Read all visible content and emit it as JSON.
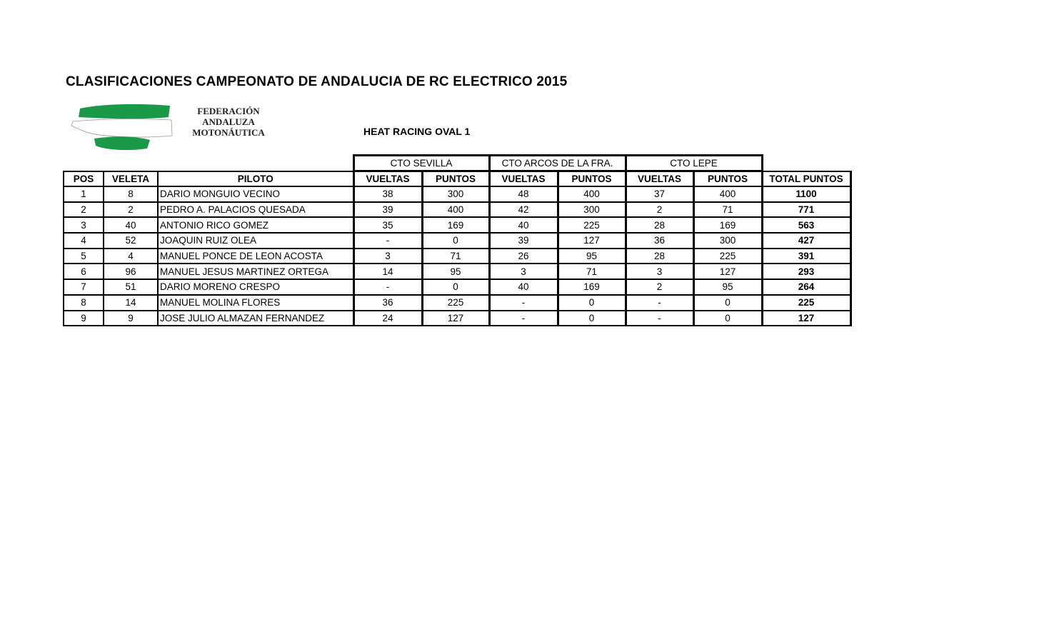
{
  "title": "CLASIFICACIONES CAMPEONATO DE ANDALUCIA DE RC ELECTRICO 2015",
  "logo": {
    "lines": [
      "FEDERACIÓN",
      "ANDALUZA",
      "MOTONÁUTICA"
    ],
    "colors": {
      "green": "#1a9a48"
    }
  },
  "subtitle": "HEAT RACING OVAL 1",
  "groups": [
    "CTO SEVILLA",
    "CTO ARCOS DE LA FRA.",
    "CTO LEPE"
  ],
  "headers": [
    "POS",
    "VELETA",
    "PILOTO",
    "VUELTAS",
    "PUNTOS",
    "VUELTAS",
    "PUNTOS",
    "VUELTAS",
    "PUNTOS",
    "TOTAL PUNTOS"
  ],
  "rows": [
    [
      "1",
      "8",
      "DARIO MONGUIO VECINO",
      "38",
      "300",
      "48",
      "400",
      "37",
      "400",
      "1100"
    ],
    [
      "2",
      "2",
      "PEDRO A. PALACIOS QUESADA",
      "39",
      "400",
      "42",
      "300",
      "2",
      "71",
      "771"
    ],
    [
      "3",
      "40",
      "ANTONIO RICO GOMEZ",
      "35",
      "169",
      "40",
      "225",
      "28",
      "169",
      "563"
    ],
    [
      "4",
      "52",
      "JOAQUIN RUIZ OLEA",
      "-",
      "0",
      "39",
      "127",
      "36",
      "300",
      "427"
    ],
    [
      "5",
      "4",
      "MANUEL PONCE DE LEON ACOSTA",
      "3",
      "71",
      "26",
      "95",
      "28",
      "225",
      "391"
    ],
    [
      "6",
      "96",
      "MANUEL JESUS MARTINEZ ORTEGA",
      "14",
      "95",
      "3",
      "71",
      "3",
      "127",
      "293"
    ],
    [
      "7",
      "51",
      "DARIO MORENO CRESPO",
      "-",
      "0",
      "40",
      "169",
      "2",
      "95",
      "264"
    ],
    [
      "8",
      "14",
      "MANUEL MOLINA FLORES",
      "36",
      "225",
      "-",
      "0",
      "-",
      "0",
      "225"
    ],
    [
      "9",
      "9",
      "JOSE JULIO ALMAZAN FERNANDEZ",
      "24",
      "127",
      "-",
      "0",
      "-",
      "0",
      "127"
    ]
  ]
}
